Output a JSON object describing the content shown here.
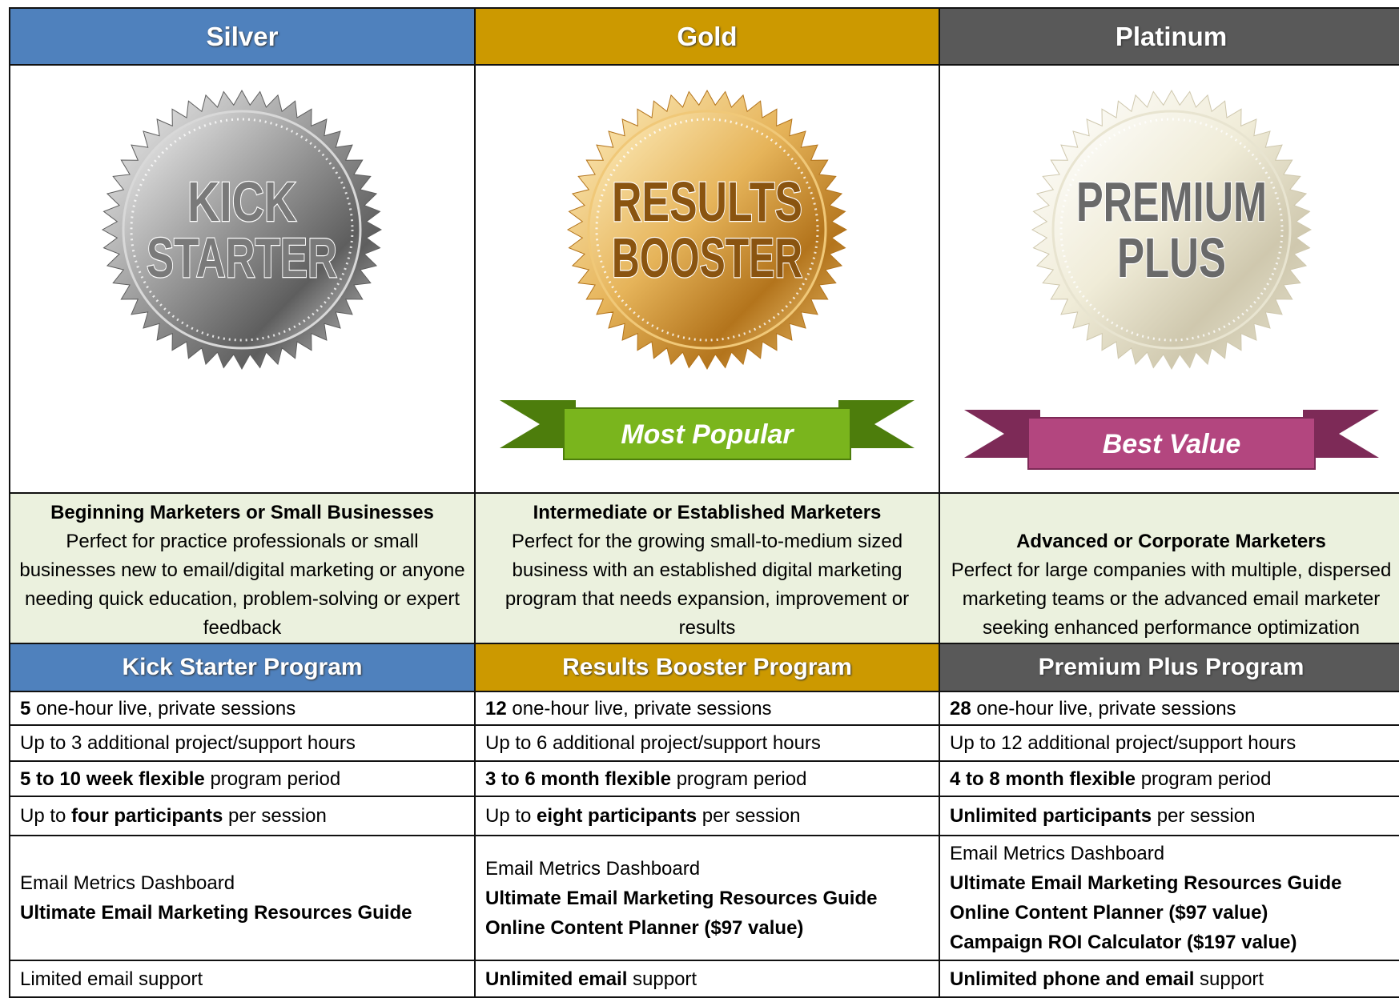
{
  "columns": [
    {
      "tier": "Silver",
      "badge": [
        "KICK",
        "STARTER"
      ],
      "audience": "Beginning Marketers or Small Businesses",
      "description": "Perfect for practice professionals or small businesses new to email/digital marketing or anyone needing quick education, problem-solving or expert feedback",
      "program": "Kick Starter Program",
      "features": [
        [
          [
            {
              "text": "5",
              "bold": true
            },
            {
              "text": " one-hour live, private sessions",
              "bold": false
            }
          ]
        ],
        [
          [
            {
              "text": "Up to 3 additional project/support hours",
              "bold": false
            }
          ]
        ],
        [
          [
            {
              "text": "5 to 10 week flexible",
              "bold": true
            },
            {
              "text": " program period",
              "bold": false
            }
          ]
        ],
        [
          [
            {
              "text": "Up to ",
              "bold": false
            },
            {
              "text": "four participants",
              "bold": true
            },
            {
              "text": " per session",
              "bold": false
            }
          ]
        ],
        [
          [
            {
              "text": "Email Metrics Dashboard",
              "bold": false
            }
          ],
          [
            {
              "text": "Ultimate Email Marketing Resources Guide",
              "bold": true
            }
          ]
        ],
        [
          [
            {
              "text": "Limited email support",
              "bold": false
            }
          ]
        ]
      ]
    },
    {
      "tier": "Gold",
      "badge": [
        "RESULTS",
        "BOOSTER"
      ],
      "ribbon": "Most Popular",
      "audience": "Intermediate or Established Marketers",
      "description": "Perfect for the growing small-to-medium sized business with an established digital marketing program that needs expansion, improvement or results",
      "program": "Results Booster Program",
      "features": [
        [
          [
            {
              "text": "12",
              "bold": true
            },
            {
              "text": " one-hour live, private sessions",
              "bold": false
            }
          ]
        ],
        [
          [
            {
              "text": "Up to 6 additional project/support hours",
              "bold": false
            }
          ]
        ],
        [
          [
            {
              "text": "3 to 6 month flexible",
              "bold": true
            },
            {
              "text": " program period",
              "bold": false
            }
          ]
        ],
        [
          [
            {
              "text": "Up to ",
              "bold": false
            },
            {
              "text": "eight participants",
              "bold": true
            },
            {
              "text": " per session",
              "bold": false
            }
          ]
        ],
        [
          [
            {
              "text": "Email Metrics Dashboard",
              "bold": false
            }
          ],
          [
            {
              "text": "Ultimate Email Marketing Resources Guide",
              "bold": true
            }
          ],
          [
            {
              "text": "Online Content Planner ($97 value)",
              "bold": true
            }
          ]
        ],
        [
          [
            {
              "text": "Unlimited email",
              "bold": true
            },
            {
              "text": " support",
              "bold": false
            }
          ]
        ]
      ]
    },
    {
      "tier": "Platinum",
      "badge": [
        "PREMIUM",
        "PLUS"
      ],
      "ribbon": "Best Value",
      "audience": "Advanced or Corporate Marketers",
      "description": "Perfect for large companies with multiple, dispersed marketing teams or the advanced email marketer seeking enhanced performance optimization",
      "program": "Premium Plus Program",
      "features": [
        [
          [
            {
              "text": "28",
              "bold": true
            },
            {
              "text": " one-hour live, private sessions",
              "bold": false
            }
          ]
        ],
        [
          [
            {
              "text": "Up to 12 additional project/support hours",
              "bold": false
            }
          ]
        ],
        [
          [
            {
              "text": "4 to 8 month flexible",
              "bold": true
            },
            {
              "text": " program period",
              "bold": false
            }
          ]
        ],
        [
          [
            {
              "text": "Unlimited participants",
              "bold": true
            },
            {
              "text": " per session",
              "bold": false
            }
          ]
        ],
        [
          [
            {
              "text": "Email Metrics Dashboard",
              "bold": false
            }
          ],
          [
            {
              "text": "Ultimate Email Marketing Resources Guide",
              "bold": true
            }
          ],
          [
            {
              "text": "Online Content Planner ($97 value)",
              "bold": true
            }
          ],
          [
            {
              "text": "Campaign ROI Calculator ($197 value)",
              "bold": true
            }
          ]
        ],
        [
          [
            {
              "text": "Unlimited phone and email",
              "bold": true
            },
            {
              "text": " support",
              "bold": false
            }
          ]
        ]
      ]
    }
  ]
}
